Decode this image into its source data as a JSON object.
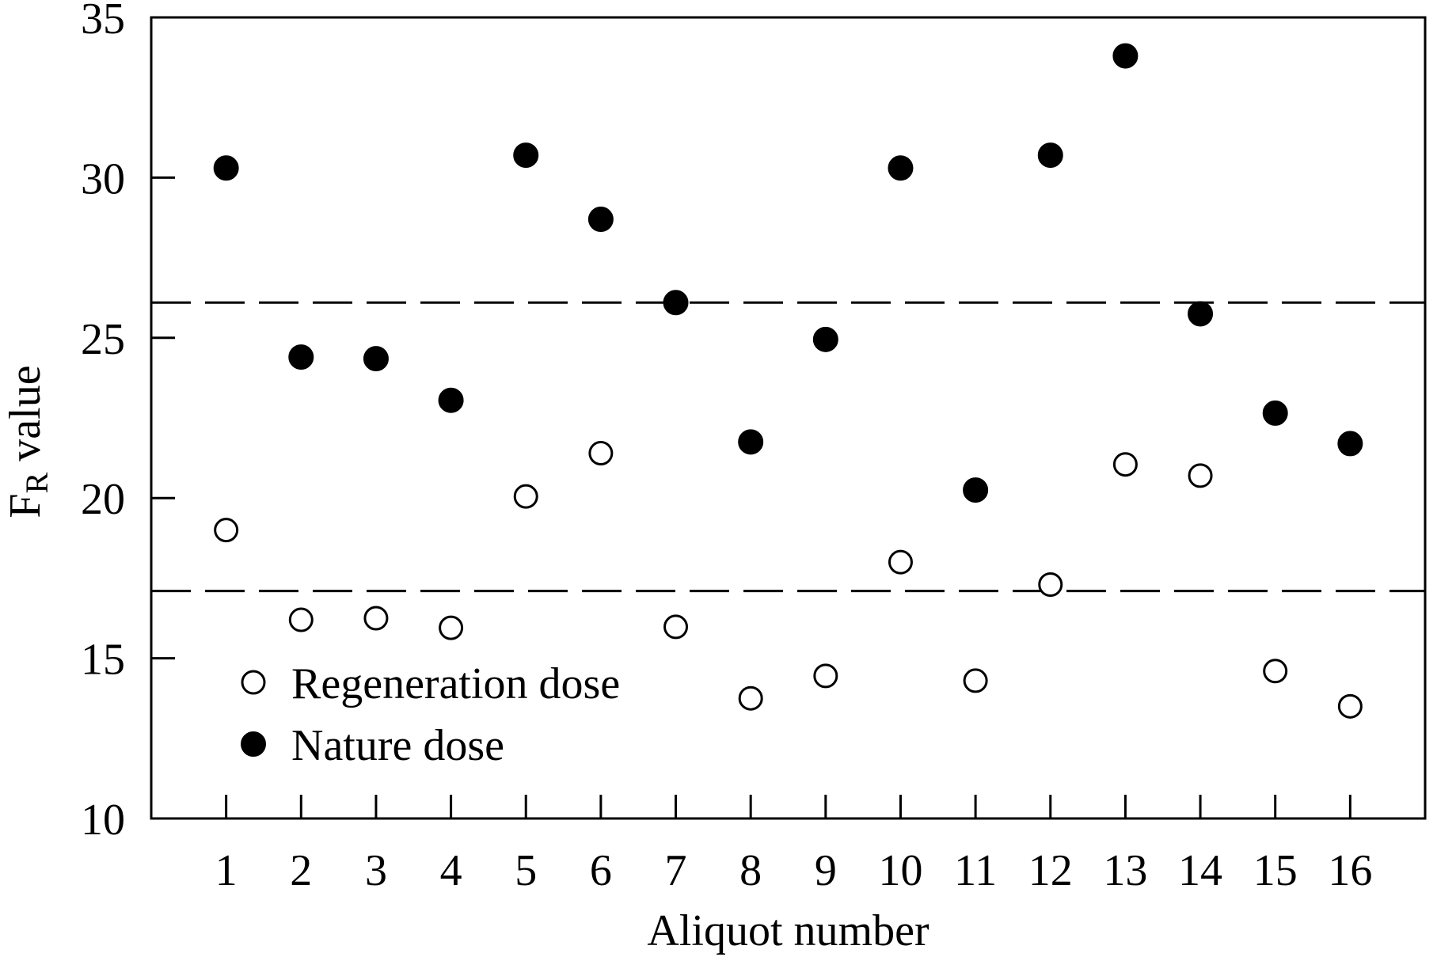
{
  "chart_data": {
    "type": "scatter",
    "title": "",
    "xlabel": "Aliquot number",
    "ylabel": {
      "main": "F",
      "sub": "R",
      "rest": " value"
    },
    "xlim": [
      0,
      17
    ],
    "ylim": [
      10,
      35
    ],
    "x": [
      1,
      2,
      3,
      4,
      5,
      6,
      7,
      8,
      9,
      10,
      11,
      12,
      13,
      14,
      15,
      16
    ],
    "x_ticks": [
      "1",
      "2",
      "3",
      "4",
      "5",
      "6",
      "7",
      "8",
      "9",
      "10",
      "11",
      "12",
      "13",
      "14",
      "15",
      "16"
    ],
    "y_ticks": [
      "10",
      "15",
      "20",
      "25",
      "30",
      "35"
    ],
    "y_tick_values": [
      10,
      15,
      20,
      25,
      30,
      35
    ],
    "reference_lines": [
      26.1,
      17.1
    ],
    "grid": false,
    "legend_position": "bottom-left",
    "series": [
      {
        "name": "Regeneration dose",
        "marker": "open-circle",
        "values": [
          19.0,
          16.2,
          16.25,
          15.95,
          20.05,
          21.4,
          15.98,
          13.75,
          14.45,
          18.0,
          14.3,
          17.3,
          21.05,
          20.7,
          14.6,
          13.5
        ]
      },
      {
        "name": "Nature dose",
        "marker": "filled-circle",
        "values": [
          30.3,
          24.4,
          24.35,
          23.05,
          30.7,
          28.7,
          26.1,
          21.75,
          24.95,
          30.3,
          20.25,
          30.7,
          33.8,
          25.75,
          22.65,
          21.7
        ]
      }
    ]
  }
}
